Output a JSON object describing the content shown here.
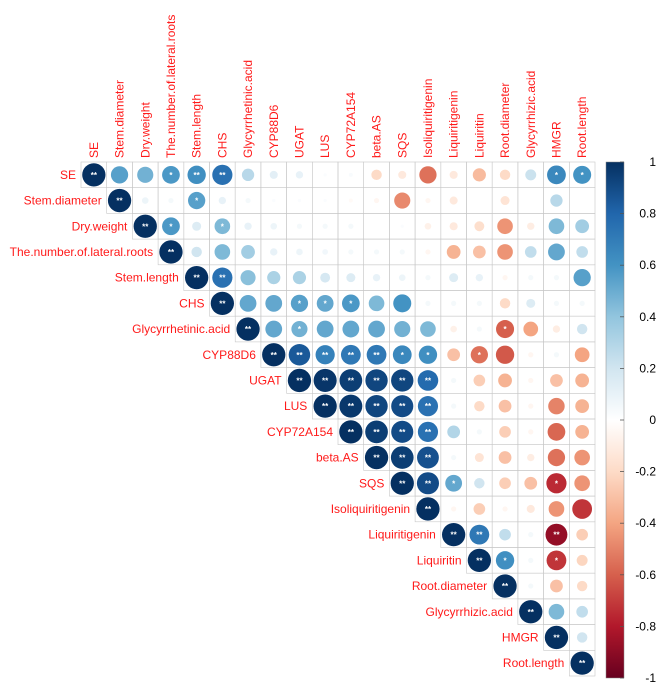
{
  "chart_data": {
    "type": "heatmap",
    "subtype": "upper-triangle correlation plot (circles)",
    "variables": [
      "SE",
      "Stem.diameter",
      "Dry.weight",
      "The.number.of.lateral.roots",
      "Stem.length",
      "CHS",
      "Glycyrrhetinic.acid",
      "CYP88D6",
      "UGAT",
      "LUS",
      "CYP72A154",
      "beta.AS",
      "SQS",
      "Isoliquiritigenin",
      "Liquiritigenin",
      "Liquiritin",
      "Root.diameter",
      "Glycyrrhizic.acid",
      "HMGR",
      "Root.length"
    ],
    "colorbar": {
      "min": -1,
      "max": 1,
      "ticks": [
        "1",
        "0.8",
        "0.6",
        "0.4",
        "0.2",
        "0",
        "-0.2",
        "-0.4",
        "-0.6",
        "-0.8",
        "-1"
      ]
    },
    "significance_labels": {
      "single": "*",
      "double": "**"
    },
    "rows": [
      {
        "values": [
          1,
          0.55,
          0.48,
          0.58,
          0.62,
          0.75,
          0.28,
          0.12,
          0.1,
          0.02,
          0.03,
          -0.2,
          -0.12,
          -0.55,
          -0.12,
          -0.32,
          -0.2,
          0.22,
          0.65,
          0.6
        ],
        "sig": [
          "**",
          "",
          "",
          "*",
          "**",
          "**",
          "",
          "",
          "",
          "",
          "",
          "",
          "",
          "",
          "",
          "",
          "",
          "",
          "*",
          "*"
        ]
      },
      {
        "values": [
          1,
          0.08,
          0.05,
          0.55,
          0.1,
          0.05,
          0.02,
          0.02,
          0.02,
          -0.03,
          -0.05,
          -0.48,
          -0.05,
          -0.12,
          0,
          -0.15,
          0,
          0.28
        ],
        "sig": [
          "**",
          "",
          "",
          "*",
          "",
          "",
          "",
          "",
          "",
          "",
          "",
          "",
          "",
          "",
          "",
          "",
          "",
          ""
        ]
      },
      {
        "values": [
          1,
          0.58,
          0.15,
          0.45,
          0.1,
          0.08,
          0.05,
          0.05,
          0.05,
          0,
          0.02,
          -0.08,
          -0.12,
          -0.18,
          -0.45,
          -0.1,
          0.45,
          0.35
        ],
        "sig": [
          "**",
          "*",
          "",
          "*",
          "",
          "",
          "",
          "",
          "",
          "",
          "",
          "",
          "",
          "",
          "",
          "",
          "",
          ""
        ]
      },
      {
        "values": [
          1,
          0.2,
          0.45,
          0.35,
          0.1,
          0.08,
          0.06,
          0.05,
          0.05,
          0.05,
          -0.05,
          -0.35,
          -0.3,
          -0.45,
          0.25,
          0.52,
          0.25
        ],
        "sig": [
          "**",
          "",
          "",
          "",
          "",
          "",
          "",
          "",
          "",
          "",
          "",
          "",
          "",
          "",
          "",
          "",
          ""
        ]
      },
      {
        "values": [
          1,
          0.75,
          0.42,
          0.32,
          0.32,
          0.18,
          0.15,
          0.1,
          0.08,
          0.05,
          0.15,
          0.1,
          -0.05,
          0.05,
          0.05,
          0.55
        ],
        "sig": [
          "**",
          "**",
          "",
          "",
          "",
          "",
          "",
          "",
          "",
          "",
          "",
          "",
          "",
          "",
          "",
          ""
        ]
      },
      {
        "values": [
          1,
          0.52,
          0.52,
          0.55,
          0.52,
          0.58,
          0.45,
          0.6,
          0.05,
          0.05,
          0.05,
          -0.2,
          0.15,
          0.05,
          0.05
        ],
        "sig": [
          "**",
          "",
          "",
          "*",
          "*",
          "*",
          "",
          "",
          "",
          "",
          "",
          "",
          "",
          "",
          ""
        ]
      },
      {
        "values": [
          1,
          0.52,
          0.48,
          0.52,
          0.52,
          0.52,
          0.48,
          0.45,
          -0.08,
          0.05,
          -0.6,
          -0.4,
          -0.1,
          0.2
        ],
        "sig": [
          "**",
          "",
          "*",
          "",
          "",
          "",
          "",
          "",
          "",
          "",
          "*",
          "",
          "",
          ""
        ]
      },
      {
        "values": [
          1,
          0.85,
          0.68,
          0.72,
          0.72,
          0.65,
          0.62,
          -0.3,
          -0.55,
          -0.62,
          -0.05,
          0.05,
          -0.4
        ],
        "sig": [
          "**",
          "**",
          "**",
          "**",
          "**",
          "*",
          "*",
          "",
          "*",
          "",
          "",
          "",
          ""
        ]
      },
      {
        "values": [
          1,
          0.98,
          0.95,
          0.92,
          0.92,
          0.78,
          0.05,
          -0.25,
          -0.35,
          -0.05,
          -0.3,
          -0.35
        ],
        "sig": [
          "**",
          "**",
          "**",
          "**",
          "**",
          "**",
          "",
          "",
          "",
          "",
          "",
          ""
        ]
      },
      {
        "values": [
          1,
          0.97,
          0.92,
          0.9,
          0.75,
          0.05,
          -0.2,
          -0.3,
          -0.05,
          -0.5,
          -0.35
        ],
        "sig": [
          "**",
          "**",
          "**",
          "**",
          "**",
          "",
          "",
          "",
          "",
          "",
          ""
        ]
      },
      {
        "values": [
          1,
          0.95,
          0.9,
          0.75,
          0.3,
          0.05,
          -0.25,
          -0.05,
          -0.58,
          -0.35
        ],
        "sig": [
          "**",
          "**",
          "**",
          "**",
          "",
          "",
          "",
          "",
          "",
          ""
        ]
      },
      {
        "values": [
          1,
          0.95,
          0.88,
          0.05,
          -0.15,
          -0.3,
          -0.1,
          -0.55,
          -0.45
        ],
        "sig": [
          "**",
          "**",
          "**",
          "",
          "",
          "",
          "",
          "",
          ""
        ]
      },
      {
        "values": [
          1,
          0.9,
          0.52,
          0.2,
          -0.25,
          -0.3,
          -0.75,
          -0.45
        ],
        "sig": [
          "**",
          "**",
          "*",
          "",
          "",
          "",
          "*",
          ""
        ]
      },
      {
        "values": [
          1,
          -0.05,
          -0.25,
          -0.05,
          -0.12,
          -0.45,
          -0.72
        ],
        "sig": [
          "**",
          "",
          "",
          "",
          "",
          "",
          ""
        ]
      },
      {
        "values": [
          1,
          0.72,
          0.25,
          0.05,
          -0.88,
          -0.25
        ],
        "sig": [
          "**",
          "**",
          "",
          "",
          "**",
          ""
        ]
      },
      {
        "values": [
          1,
          0.62,
          0.05,
          -0.72,
          -0.22
        ],
        "sig": [
          "**",
          "*",
          "",
          "*",
          ""
        ]
      },
      {
        "values": [
          1,
          0.05,
          -0.3,
          -0.2
        ],
        "sig": [
          "**",
          "",
          "",
          ""
        ]
      },
      {
        "values": [
          1,
          0.45,
          0.25
        ],
        "sig": [
          "**",
          "",
          ""
        ]
      },
      {
        "values": [
          1,
          0.2
        ],
        "sig": [
          "**",
          ""
        ]
      },
      {
        "values": [
          1
        ],
        "sig": [
          "**"
        ]
      }
    ]
  }
}
